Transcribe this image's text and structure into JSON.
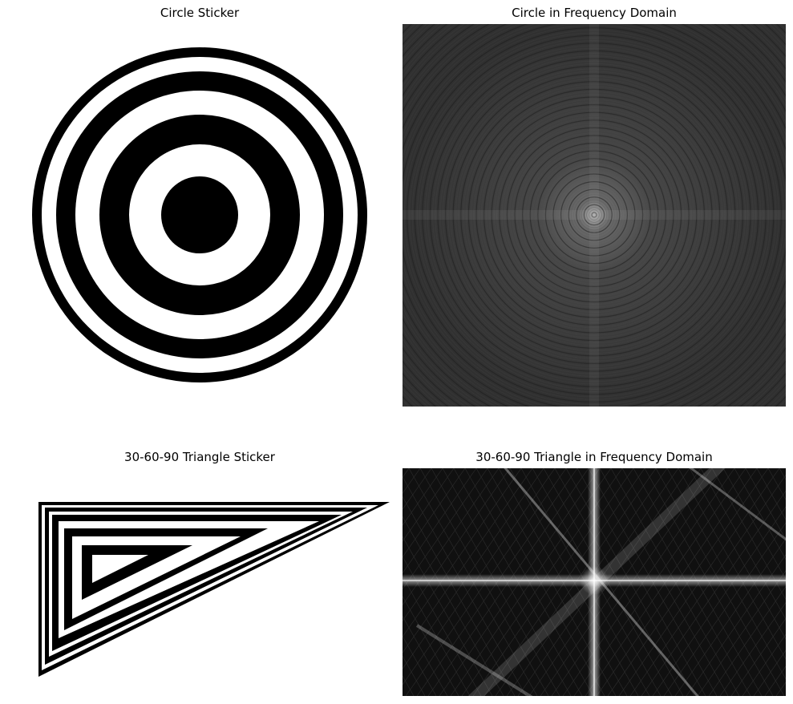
{
  "panels": [
    {
      "title": "Circle Sticker"
    },
    {
      "title": "Circle in Frequency Domain"
    },
    {
      "title": "30-60-90 Triangle Sticker"
    },
    {
      "title": "30-60-90 Triangle in Frequency Domain"
    }
  ]
}
